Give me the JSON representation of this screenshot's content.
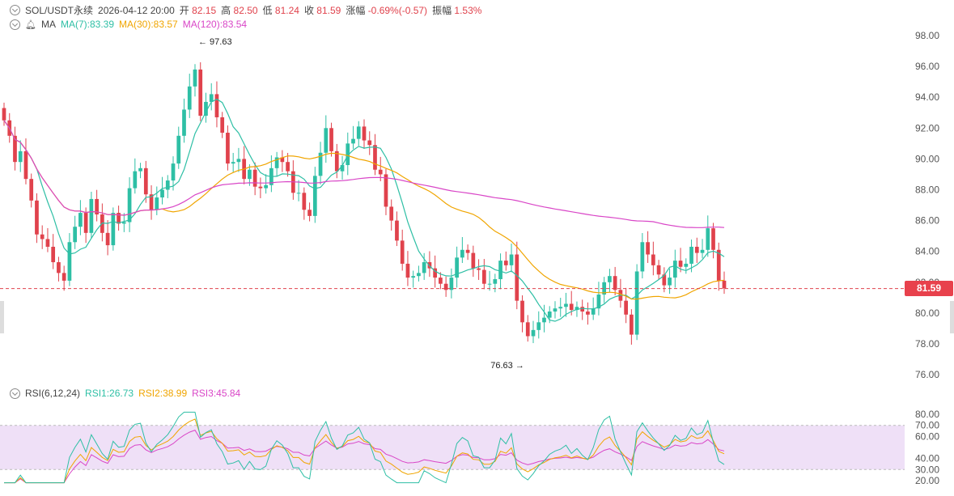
{
  "header": {
    "symbol": "SOL/USDT永续",
    "datetime": "2026-04-12 20:00",
    "open_label": "开",
    "open": "82.15",
    "high_label": "高",
    "high": "82.50",
    "low_label": "低",
    "low": "81.24",
    "close_label": "收",
    "close": "81.59",
    "change_label": "涨幅",
    "change": "-0.69%(-0.57)",
    "amp_label": "振幅",
    "amp": "1.53%"
  },
  "ma_legend": {
    "name": "MA",
    "ma7": "MA(7):83.39",
    "ma30": "MA(30):83.57",
    "ma120": "MA(120):83.54"
  },
  "rsi_legend": {
    "name": "RSI(6,12,24)",
    "rsi1": "RSI1:26.73",
    "rsi2": "RSI2:38.99",
    "rsi3": "RSI3:45.84"
  },
  "current_price": "81.59",
  "colors": {
    "up": "#2ebfa5",
    "down": "#e0424c",
    "ma7": "#2ebfa5",
    "ma30": "#f0a500",
    "ma120": "#d946c7",
    "rsi_band": "#efe0f7"
  },
  "chart_data": {
    "type": "candlestick",
    "ylim": [
      75,
      99
    ],
    "y_ticks": [
      "98.00",
      "96.00",
      "94.00",
      "92.00",
      "90.00",
      "88.00",
      "86.00",
      "84.00",
      "82.00",
      "80.00",
      "78.00",
      "76.00"
    ],
    "annotations": {
      "high": "97.63",
      "low": "76.63"
    },
    "close": [
      92.5,
      91.5,
      89.8,
      90.5,
      88.7,
      87.3,
      85.1,
      84.8,
      84.3,
      83.3,
      82.6,
      82.1,
      84.6,
      85.6,
      86.5,
      85.2,
      87.4,
      86.4,
      85.2,
      84.4,
      86.5,
      85.8,
      85.9,
      88.1,
      89.2,
      89.4,
      87.7,
      86.7,
      87.5,
      88.0,
      88.6,
      89.7,
      91.5,
      93.2,
      94.7,
      95.8,
      92.8,
      93.7,
      94.2,
      92.7,
      91.7,
      89.7,
      89.8,
      90.0,
      88.7,
      89.3,
      88.2,
      88.1,
      88.3,
      89.4,
      90.1,
      89.8,
      89.2,
      87.8,
      87.8,
      86.7,
      86.3,
      88.9,
      90.4,
      92.0,
      90.5,
      89.2,
      89.6,
      91.0,
      91.3,
      92.1,
      91.2,
      90.9,
      89.3,
      89.0,
      86.9,
      86.0,
      84.7,
      83.2,
      82.3,
      82.4,
      82.6,
      83.3,
      82.9,
      82.3,
      81.9,
      81.5,
      82.3,
      83.6,
      84.1,
      83.9,
      82.9,
      82.8,
      81.9,
      81.9,
      82.2,
      83.4,
      83.1,
      83.8,
      80.8,
      79.4,
      78.5,
      78.9,
      79.4,
      79.7,
      80.1,
      80.3,
      80.4,
      80.6,
      80.2,
      80.4,
      80.1,
      79.9,
      80.3,
      81.2,
      82.0,
      82.4,
      81.5,
      80.8,
      79.9,
      78.6,
      82.7,
      84.6,
      83.8,
      83.1,
      82.5,
      81.8,
      82.3,
      83.4,
      83.0,
      83.2,
      84.3,
      83.9,
      84.1,
      85.5,
      84.1,
      82.1,
      81.6
    ],
    "rsi": {
      "band": [
        30,
        70
      ],
      "ylim": [
        17,
        83
      ],
      "ticks": [
        "80.00",
        "70.00",
        "60.00",
        "40.00",
        "30.00",
        "20.00"
      ],
      "rsi1": 26.73,
      "rsi2": 38.99,
      "rsi3": 45.84
    }
  }
}
